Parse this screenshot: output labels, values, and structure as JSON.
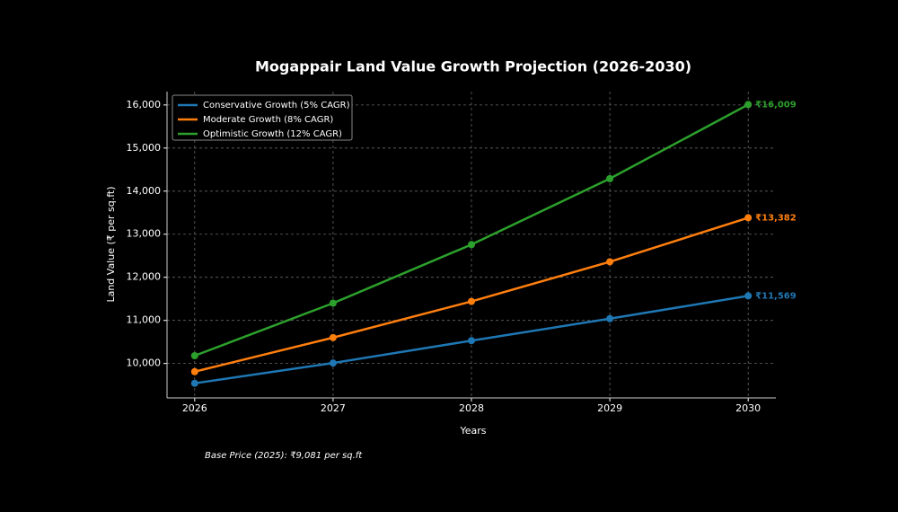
{
  "chart_data": {
    "type": "line",
    "title": "Mogappair Land Value Growth Projection (2026-2030)",
    "x_label": "Years",
    "y_label": "Land Value (₹ per sq.ft)",
    "annotation": "Base Price (2025): ₹9,081 per sq.ft",
    "x": [
      2026,
      2027,
      2028,
      2029,
      2030
    ],
    "series": [
      {
        "name": "Conservative Growth (5% CAGR)",
        "color": "#1f77b4",
        "values": [
          9540,
          10010,
          10530,
          11040,
          11569
        ],
        "value_labels": [
          null,
          null,
          null,
          null,
          "₹11,569"
        ]
      },
      {
        "name": "Moderate Growth (8% CAGR)",
        "color": "#ff7f0e",
        "values": [
          9810,
          10600,
          11440,
          12360,
          13382
        ],
        "value_labels": [
          null,
          null,
          null,
          null,
          "₹13,382"
        ]
      },
      {
        "name": "Optimistic Growth (12% CAGR)",
        "color": "#2ca02c",
        "values": [
          10180,
          11400,
          12760,
          14290,
          16009
        ],
        "value_labels": [
          null,
          null,
          null,
          null,
          "₹16,009"
        ]
      }
    ],
    "xlim": [
      2025.8,
      2030.2
    ],
    "ylim": [
      9200,
      16310
    ],
    "xticks": [
      2026,
      2027,
      2028,
      2029,
      2030
    ],
    "yticks": [
      {
        "value": 10000,
        "label": "10,000"
      },
      {
        "value": 11000,
        "label": "11,000"
      },
      {
        "value": 12000,
        "label": "12,000"
      },
      {
        "value": 13000,
        "label": "13,000"
      },
      {
        "value": 14000,
        "label": "14,000"
      },
      {
        "value": 15000,
        "label": "15,000"
      },
      {
        "value": 16000,
        "label": "16,000"
      }
    ],
    "grid": true,
    "legend": "upper left"
  }
}
